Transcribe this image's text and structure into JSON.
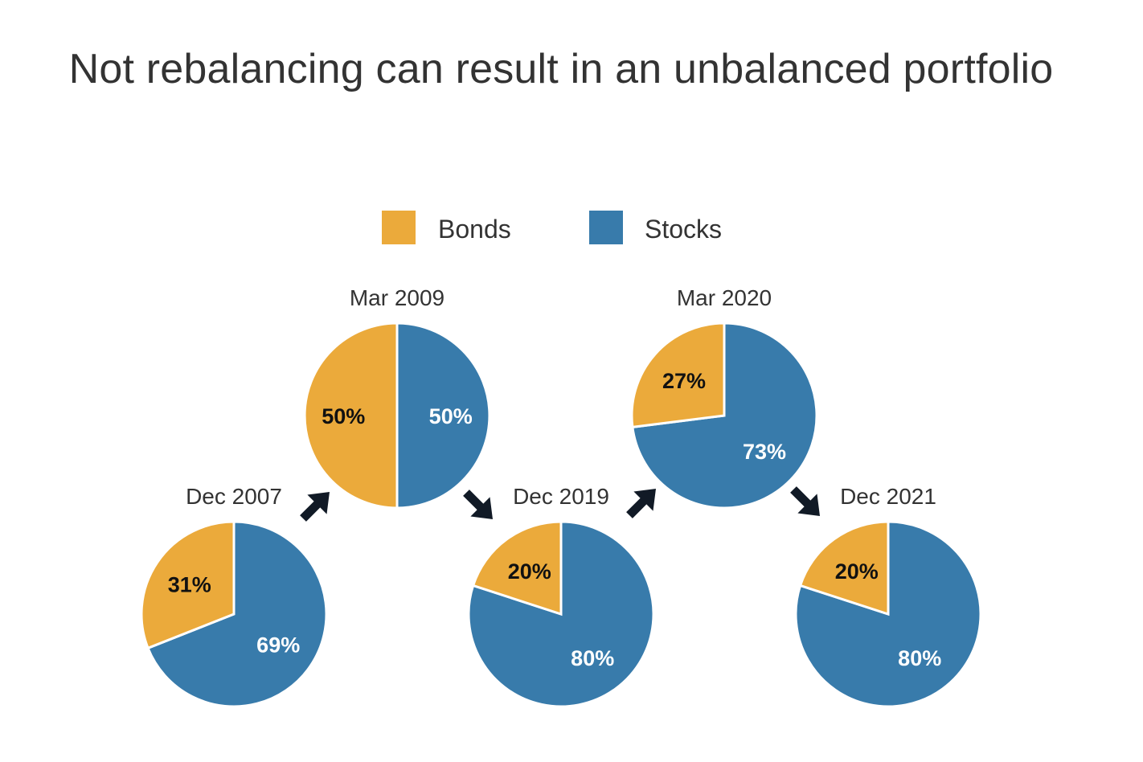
{
  "title": "Not rebalancing can result in an unbalanced portfolio",
  "colors": {
    "bonds": "#EBAA3B",
    "stocks": "#387BAB",
    "arrow": "#111a26",
    "title": "#333333",
    "label_dark": "#111111",
    "label_light": "#ffffff"
  },
  "legend": [
    {
      "name": "Bonds",
      "color": "#EBAA3B"
    },
    {
      "name": "Stocks",
      "color": "#387BAB"
    }
  ],
  "chart_data": [
    {
      "type": "pie",
      "label": "Dec 2007",
      "slices": [
        {
          "name": "Bonds",
          "value": 31,
          "label": "31%"
        },
        {
          "name": "Stocks",
          "value": 69,
          "label": "69%"
        }
      ]
    },
    {
      "type": "pie",
      "label": "Mar 2009",
      "slices": [
        {
          "name": "Bonds",
          "value": 50,
          "label": "50%"
        },
        {
          "name": "Stocks",
          "value": 50,
          "label": "50%"
        }
      ]
    },
    {
      "type": "pie",
      "label": "Dec 2019",
      "slices": [
        {
          "name": "Bonds",
          "value": 20,
          "label": "20%"
        },
        {
          "name": "Stocks",
          "value": 80,
          "label": "80%"
        }
      ]
    },
    {
      "type": "pie",
      "label": "Mar 2020",
      "slices": [
        {
          "name": "Bonds",
          "value": 27,
          "label": "27%"
        },
        {
          "name": "Stocks",
          "value": 73,
          "label": "73%"
        }
      ]
    },
    {
      "type": "pie",
      "label": "Dec 2021",
      "slices": [
        {
          "name": "Bonds",
          "value": 20,
          "label": "20%"
        },
        {
          "name": "Stocks",
          "value": 80,
          "label": "80%"
        }
      ]
    }
  ],
  "arrows": [
    {
      "from": "Dec 2007",
      "to": "Mar 2009",
      "direction": "up"
    },
    {
      "from": "Mar 2009",
      "to": "Dec 2019",
      "direction": "down"
    },
    {
      "from": "Dec 2019",
      "to": "Mar 2020",
      "direction": "up"
    },
    {
      "from": "Mar 2020",
      "to": "Dec 2021",
      "direction": "down"
    }
  ]
}
